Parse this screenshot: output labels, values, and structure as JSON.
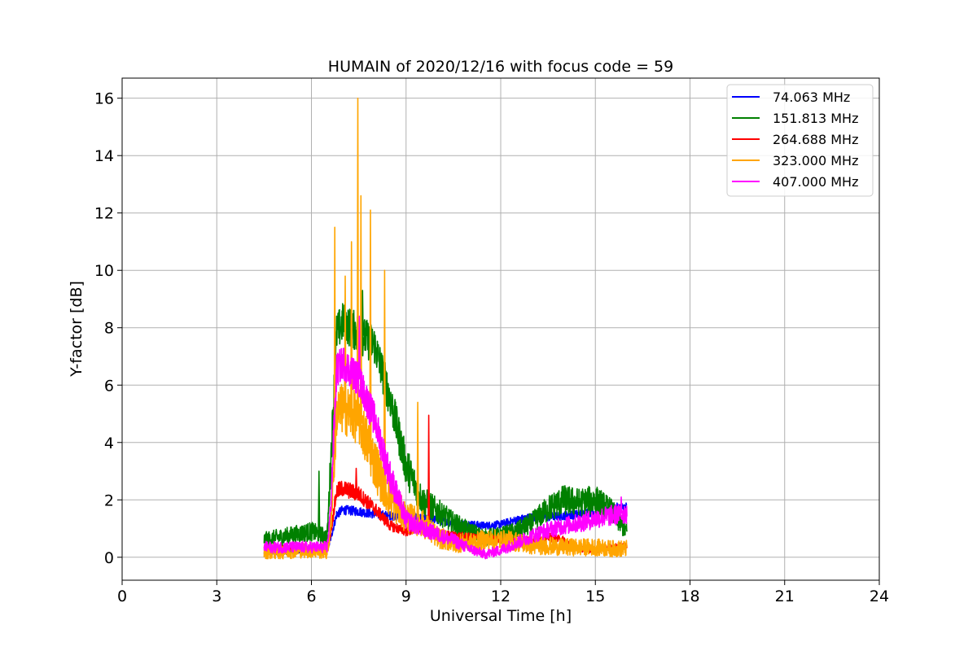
{
  "chart_data": {
    "type": "line",
    "title": "HUMAIN of 2020/12/16 with focus code = 59",
    "xlabel": "Universal Time [h]",
    "ylabel": "Y-factor [dB]",
    "xlim": [
      0,
      24
    ],
    "ylim": [
      -0.8,
      16.7
    ],
    "xticks": [
      0,
      3,
      6,
      9,
      12,
      15,
      18,
      21,
      24
    ],
    "yticks": [
      0,
      2,
      4,
      6,
      8,
      10,
      12,
      14,
      16
    ],
    "grid": true,
    "legend_position": "top-right",
    "series": [
      {
        "name": " 74.063 MHz",
        "color": "#0000ff",
        "x": [
          4.5,
          5.0,
          5.5,
          6.0,
          6.5,
          6.6,
          6.8,
          7.0,
          7.5,
          8.0,
          8.5,
          9.0,
          9.5,
          10.0,
          10.5,
          11.0,
          11.5,
          12.0,
          12.5,
          13.0,
          13.5,
          14.0,
          14.5,
          15.0,
          15.5,
          16.0
        ],
        "y": [
          0.15,
          0.15,
          0.2,
          0.2,
          0.2,
          0.6,
          1.5,
          1.65,
          1.6,
          1.5,
          1.45,
          1.4,
          1.35,
          1.3,
          1.2,
          1.15,
          1.1,
          1.15,
          1.3,
          1.4,
          1.4,
          1.45,
          1.5,
          1.6,
          1.7,
          1.75
        ],
        "noise": 0.25
      },
      {
        "name": "151.813 MHz",
        "color": "#008000",
        "x": [
          4.5,
          5.0,
          5.5,
          6.0,
          6.5,
          6.6,
          6.8,
          7.0,
          7.5,
          8.0,
          8.5,
          9.0,
          9.5,
          10.0,
          10.5,
          11.0,
          11.5,
          12.0,
          12.5,
          13.0,
          13.5,
          14.0,
          14.5,
          15.0,
          15.5,
          16.0
        ],
        "y": [
          0.6,
          0.7,
          0.8,
          0.9,
          0.7,
          3.0,
          7.8,
          8.2,
          7.8,
          7.4,
          5.5,
          3.2,
          2.0,
          1.6,
          1.2,
          0.9,
          0.7,
          0.75,
          0.9,
          1.2,
          1.7,
          2.0,
          1.9,
          2.0,
          1.6,
          0.9
        ],
        "noise": 0.7
      },
      {
        "name": "264.688 MHz",
        "color": "#ff0000",
        "x": [
          4.5,
          5.0,
          5.5,
          6.0,
          6.5,
          6.6,
          6.8,
          7.0,
          7.5,
          8.0,
          8.5,
          9.0,
          9.5,
          10.0,
          10.5,
          11.0,
          11.5,
          12.0,
          12.5,
          13.0,
          13.5,
          14.0,
          14.5,
          15.0,
          15.5,
          16.0
        ],
        "y": [
          0.3,
          0.3,
          0.3,
          0.3,
          0.3,
          0.8,
          2.3,
          2.4,
          2.2,
          1.7,
          1.1,
          0.9,
          1.0,
          0.8,
          0.75,
          0.7,
          0.65,
          0.6,
          0.55,
          0.6,
          0.7,
          0.6,
          0.3,
          0.25,
          0.35,
          0.4
        ],
        "noise": 0.35
      },
      {
        "name": "323.000 MHz",
        "color": "#ffa500",
        "x": [
          4.5,
          5.0,
          5.5,
          6.0,
          6.5,
          6.6,
          6.8,
          7.0,
          7.5,
          8.0,
          8.5,
          9.0,
          9.5,
          10.0,
          10.5,
          11.0,
          11.5,
          12.0,
          12.5,
          13.0,
          13.5,
          14.0,
          14.5,
          15.0,
          15.5,
          16.0
        ],
        "y": [
          0.2,
          0.2,
          0.25,
          0.25,
          0.2,
          1.0,
          5.0,
          5.2,
          4.8,
          3.3,
          2.0,
          1.4,
          1.2,
          0.7,
          0.5,
          0.5,
          0.6,
          0.6,
          0.55,
          0.4,
          0.4,
          0.35,
          0.35,
          0.35,
          0.3,
          0.3
        ],
        "noise": 0.9
      },
      {
        "name": "407.000 MHz",
        "color": "#ff00ff",
        "x": [
          4.5,
          5.0,
          5.5,
          6.0,
          6.5,
          6.6,
          6.8,
          7.0,
          7.5,
          8.0,
          8.5,
          9.0,
          9.5,
          10.0,
          10.5,
          11.0,
          11.5,
          12.0,
          12.5,
          13.0,
          13.5,
          14.0,
          14.5,
          15.0,
          15.5,
          16.0
        ],
        "y": [
          0.35,
          0.35,
          0.35,
          0.35,
          0.35,
          1.5,
          6.5,
          6.8,
          6.2,
          4.8,
          2.8,
          1.3,
          1.0,
          0.8,
          0.6,
          0.3,
          0.1,
          0.25,
          0.5,
          0.75,
          0.95,
          1.1,
          1.2,
          1.35,
          1.45,
          1.55
        ],
        "noise": 0.6
      }
    ],
    "spikes": [
      {
        "series": 3,
        "x": 6.72,
        "y": 11.5
      },
      {
        "series": 3,
        "x": 7.05,
        "y": 9.8
      },
      {
        "series": 3,
        "x": 7.25,
        "y": 11.0
      },
      {
        "series": 3,
        "x": 7.45,
        "y": 16.0
      },
      {
        "series": 3,
        "x": 7.55,
        "y": 12.6
      },
      {
        "series": 3,
        "x": 7.85,
        "y": 12.1
      },
      {
        "series": 3,
        "x": 8.3,
        "y": 10.0
      },
      {
        "series": 3,
        "x": 9.35,
        "y": 5.4
      },
      {
        "series": 1,
        "x": 6.22,
        "y": 3.0
      },
      {
        "series": 1,
        "x": 7.6,
        "y": 9.3
      },
      {
        "series": 2,
        "x": 7.4,
        "y": 3.1
      },
      {
        "series": 2,
        "x": 9.7,
        "y": 4.95
      },
      {
        "series": 4,
        "x": 7.5,
        "y": 8.4
      },
      {
        "series": 4,
        "x": 15.8,
        "y": 2.1
      }
    ]
  }
}
